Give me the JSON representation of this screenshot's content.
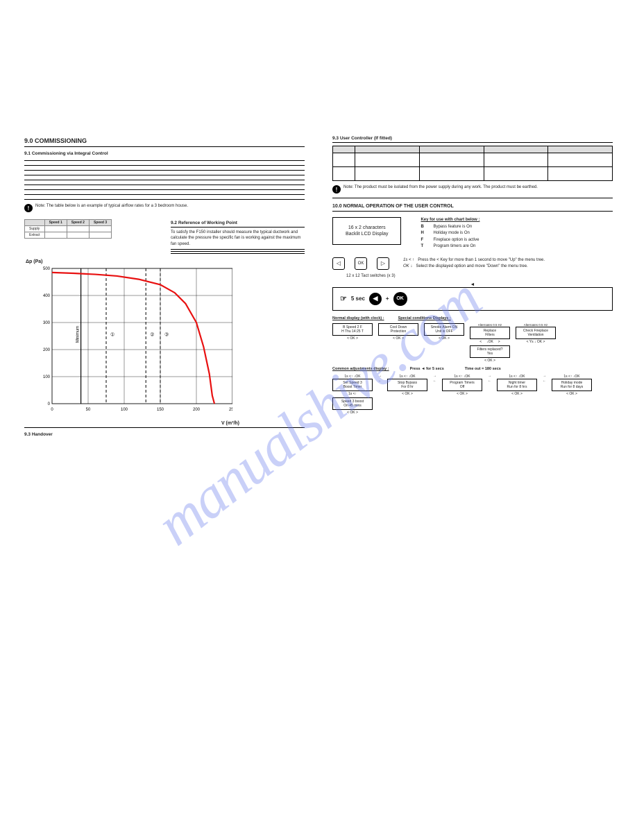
{
  "watermark": "manualshive.com",
  "left": {
    "sect_num": "9.0",
    "sect_title": "COMMISSIONING",
    "sub1": "9.1 Commissioning via Integral Control",
    "warn_text": "Note: The table below is an example of typical airflow rates for a 3 bedroom house.",
    "example_table": {
      "headers": [
        "",
        "Speed 1",
        "Speed 2",
        "Speed 3"
      ],
      "rows": [
        [
          "Supply",
          "",
          "",
          ""
        ],
        [
          "Extract",
          "",
          "",
          ""
        ]
      ]
    },
    "sub2_num": "9.2",
    "sub2_title": "Reference of Working Point",
    "sub2_para": "To satisfy the F150 installer should measure the typical ductwork and calculate the pressure the specific fan is working against the maximum fan speed.",
    "chart": {
      "type": "line",
      "ylabel": "Δp (Pa)",
      "xlabel": "V (m³/h)",
      "ylim": [
        0,
        500
      ],
      "xlim": [
        0,
        250
      ],
      "ytick_step": 100,
      "xtick_step": 50,
      "curve_color": "#e81010",
      "grid_color": "#000000",
      "dash_lines_x": [
        75,
        130,
        150
      ],
      "min_line_x": 40,
      "curve_points": [
        [
          0,
          485
        ],
        [
          30,
          482
        ],
        [
          60,
          478
        ],
        [
          90,
          472
        ],
        [
          120,
          460
        ],
        [
          150,
          440
        ],
        [
          170,
          410
        ],
        [
          185,
          370
        ],
        [
          200,
          300
        ],
        [
          210,
          210
        ],
        [
          218,
          110
        ],
        [
          222,
          30
        ],
        [
          225,
          0
        ]
      ],
      "annotations": [
        "①",
        "②",
        "③"
      ],
      "min_label": "Minimum"
    },
    "bottom_sub": "9.3 Handover"
  },
  "right": {
    "top_sub": "9.3 User Controller (If fitted)",
    "big_table": {
      "header_cols": 5,
      "rows": 2
    },
    "warn2": "Note: The product must be isolated from the power supply during any work. The product must be earthed.",
    "sect10": "10.0 NORMAL OPERATION OF THE USER CONTROL",
    "lcd_line1": "16 x 2 characters",
    "lcd_line2": "Backlit LCD Display",
    "key_title": "Key for use with chart below :",
    "keys": [
      {
        "k": "B",
        "v": "Bypass feature is On"
      },
      {
        "k": "H",
        "v": "Holiday mode is On"
      },
      {
        "k": "F",
        "v": "Fireplace option is active"
      },
      {
        "k": "T",
        "v": "Program timers are On"
      }
    ],
    "tact_label": "12 x 12 Tact switches (x 3)",
    "nav_hint1": "Press the < Key for more than 1 second to move \"Up\" the menu tree.",
    "nav_hint2": "Select the displayed option and move \"Down\" the menu tree.",
    "nav_left": "1s <",
    "nav_ok": "OK",
    "five_sec": "5 sec",
    "flow": {
      "normal_label": "Normal display (with clock) :",
      "special_label": "Special conditions Displays :",
      "common_label": "Common adjustments display :",
      "press_label": "Press ◄ for 5 secs",
      "timeout_label": "Time out = 180 secs",
      "normal_box": {
        "l1": "B      Speed 2      F",
        "l2": "H    Thu 14:25    T"
      },
      "special_boxes": [
        {
          "t": "Cool Down",
          "b": "Protection"
        },
        {
          "t": "Smoke Alarm ON",
          "b": "Unit is OFF"
        },
        {
          "alt": "Alternates 0.5 Hz",
          "t": "Replace",
          "b": "Filters"
        },
        {
          "alt": "Alternates 0.5 Hz",
          "t": "Check Fireplace",
          "b": "Ventilation"
        }
      ],
      "filters_replaced": {
        "t": "Filters replaced?",
        "b": "Yes"
      },
      "common_boxes": [
        {
          "t": "Set Speed 3",
          "b": "Boost Timer"
        },
        {
          "t": "Stop Bypass",
          "b": "For 8 hr"
        },
        {
          "t": "Program Timers",
          "b": "Off"
        },
        {
          "t": "Night timer",
          "b": "Run for 8 hrs"
        },
        {
          "t": "Holiday mode",
          "b": "Run for 8 days"
        }
      ],
      "speed3_box": {
        "t": "Speed 3 boost",
        "b": "On 45 mins"
      },
      "nav_ok_row": "<        OK        >",
      "nav_ys_row": "<      Ys ↓ OK     >",
      "arrow_hint": "1s <↑          ↓OK"
    }
  }
}
